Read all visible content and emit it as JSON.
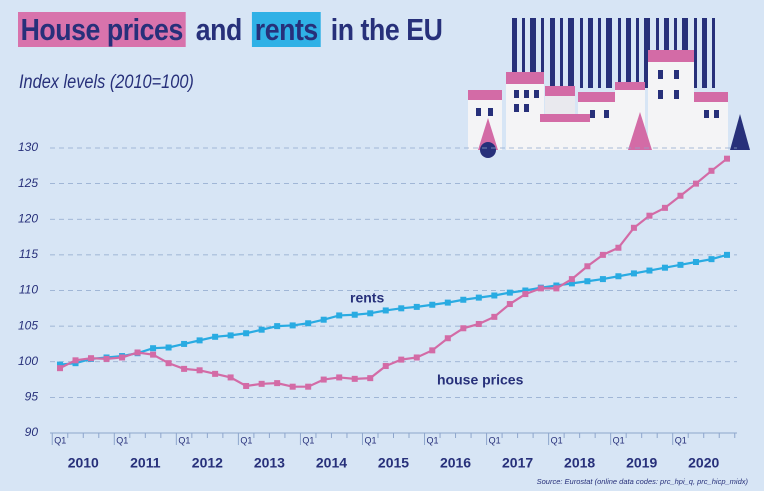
{
  "chart_data": {
    "type": "line",
    "title_segments": [
      "House prices",
      "and",
      "rents",
      "in the EU"
    ],
    "subtitle": "Index levels (2010=100)",
    "source": "Source: Eurostat (online data codes: prc_hpi_q, prc_hicp_midx)",
    "categories": [
      "Q1",
      null,
      null,
      null,
      "Q1",
      null,
      null,
      null,
      "Q1",
      null,
      null,
      null,
      "Q1",
      null,
      null,
      null,
      "Q1",
      null,
      null,
      null,
      "Q1",
      null,
      null,
      null,
      "Q1",
      null,
      null,
      null,
      "Q1",
      null,
      null,
      null,
      "Q1",
      null,
      null,
      null,
      "Q1",
      null,
      null,
      null,
      "Q1",
      null,
      null,
      null
    ],
    "years": [
      "2010",
      "2011",
      "2012",
      "2013",
      "2014",
      "2015",
      "2016",
      "2017",
      "2018",
      "2019",
      "2020"
    ],
    "series": [
      {
        "name": "rents",
        "color": "#29abe2",
        "values": [
          99.6,
          99.8,
          100.4,
          100.6,
          100.8,
          101.2,
          101.9,
          102.0,
          102.5,
          103.0,
          103.5,
          103.7,
          104.0,
          104.5,
          105.0,
          105.1,
          105.4,
          105.9,
          106.5,
          106.6,
          106.8,
          107.2,
          107.5,
          107.7,
          108.0,
          108.3,
          108.7,
          109.0,
          109.3,
          109.7,
          110.0,
          110.4,
          110.7,
          111.0,
          111.3,
          111.6,
          112.0,
          112.4,
          112.8,
          113.2,
          113.6,
          114.0,
          114.4,
          115.0
        ]
      },
      {
        "name": "house prices",
        "color": "#d36ba6",
        "values": [
          99.1,
          100.2,
          100.5,
          100.4,
          100.6,
          101.3,
          101.0,
          99.8,
          99.0,
          98.8,
          98.3,
          97.8,
          96.6,
          96.9,
          97.0,
          96.5,
          96.5,
          97.5,
          97.8,
          97.6,
          97.7,
          99.4,
          100.3,
          100.6,
          101.6,
          103.3,
          104.7,
          105.3,
          106.3,
          108.1,
          109.5,
          110.3,
          110.3,
          111.6,
          113.4,
          115.0,
          116.0,
          118.8,
          120.5,
          121.6,
          123.3,
          125.0,
          126.8,
          128.5
        ]
      }
    ],
    "ylim": [
      90,
      130
    ],
    "yticks": [
      90,
      95,
      100,
      105,
      110,
      115,
      120,
      125,
      130
    ],
    "grid": true
  }
}
